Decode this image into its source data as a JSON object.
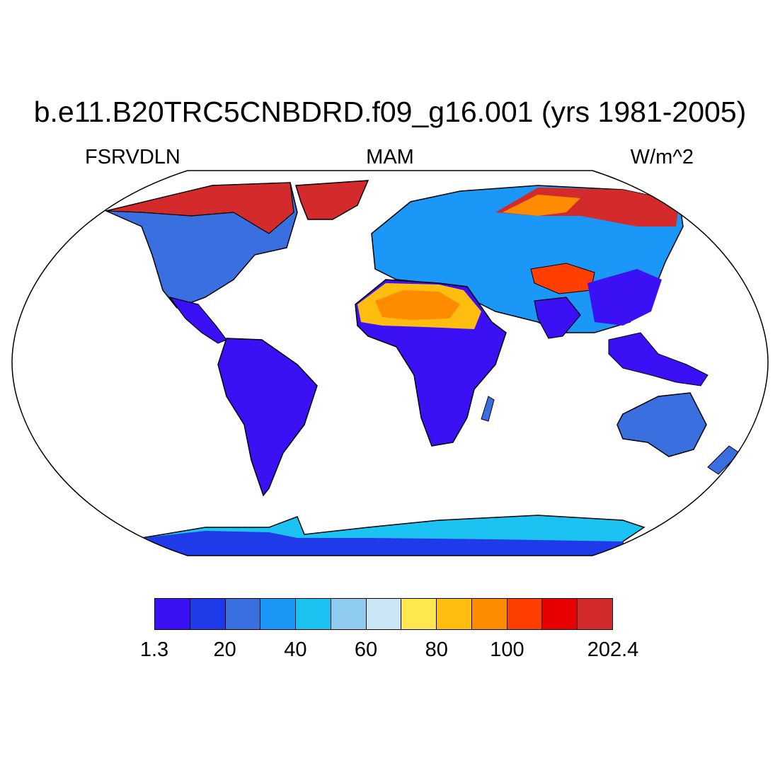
{
  "title": "b.e11.B20TRC5CNBDRD.f09_g16.001 (yrs 1981-2005)",
  "left_label": "FSRVDLN",
  "center_label": "MAM",
  "right_label": "W/m^2",
  "colorbar": {
    "colors": [
      "#3b10f5",
      "#1f3ae8",
      "#3a6fdf",
      "#1b98f7",
      "#1cc3f2",
      "#8fcaef",
      "#cae6f4",
      "#ffe84f",
      "#ffbd10",
      "#ff8b00",
      "#ff3f00",
      "#e80000",
      "#d32b2b"
    ],
    "tick_labels": [
      "1.3",
      "20",
      "40",
      "60",
      "80",
      "100",
      "202.4"
    ]
  },
  "map": {
    "projection": "Robinson",
    "ocean_color": "#ffffff",
    "land_default": "#3b10f5"
  }
}
